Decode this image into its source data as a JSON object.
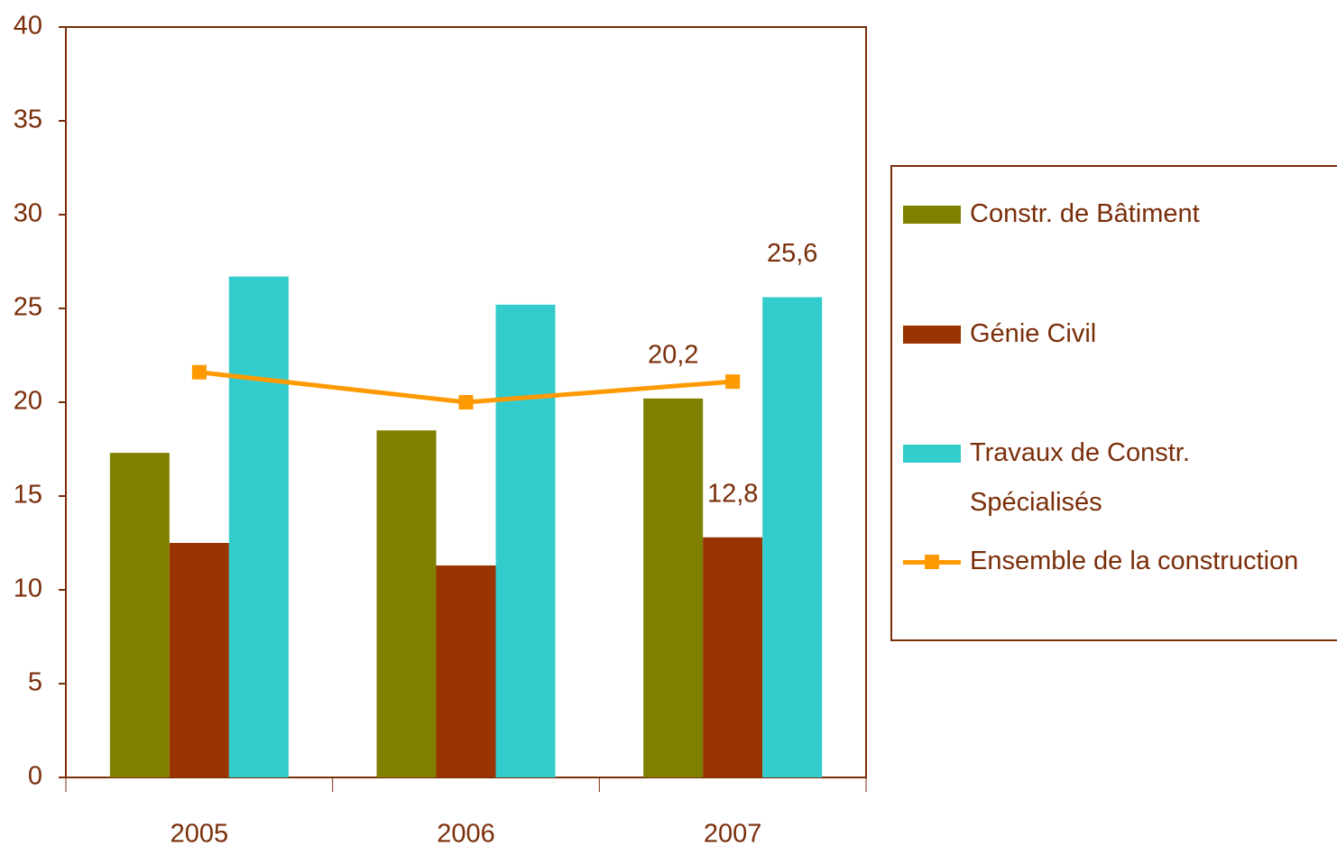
{
  "chart_data": {
    "type": "bar",
    "categories": [
      "2005",
      "2006",
      "2007"
    ],
    "series": [
      {
        "name": "Constr. de Bâtiment",
        "color": "#808000",
        "values": [
          17.3,
          18.5,
          20.2
        ],
        "value_labels": [
          null,
          null,
          "20,2"
        ]
      },
      {
        "name": "Génie Civil",
        "color": "#993300",
        "values": [
          12.5,
          11.3,
          12.8
        ],
        "value_labels": [
          null,
          null,
          "12,8"
        ]
      },
      {
        "name": "Travaux de Constr. Spécialisés",
        "color": "#33CCCC",
        "values": [
          26.7,
          25.2,
          25.6
        ],
        "value_labels": [
          null,
          null,
          "25,6"
        ]
      },
      {
        "name": "Ensemble de la construction",
        "color": "#FF9900",
        "type": "line",
        "values": [
          21.6,
          20.0,
          21.1
        ]
      }
    ],
    "ylim": [
      0,
      40
    ],
    "yticks": [
      0,
      5,
      10,
      15,
      20,
      25,
      30,
      35,
      40
    ],
    "grid": false,
    "legend": "right"
  }
}
